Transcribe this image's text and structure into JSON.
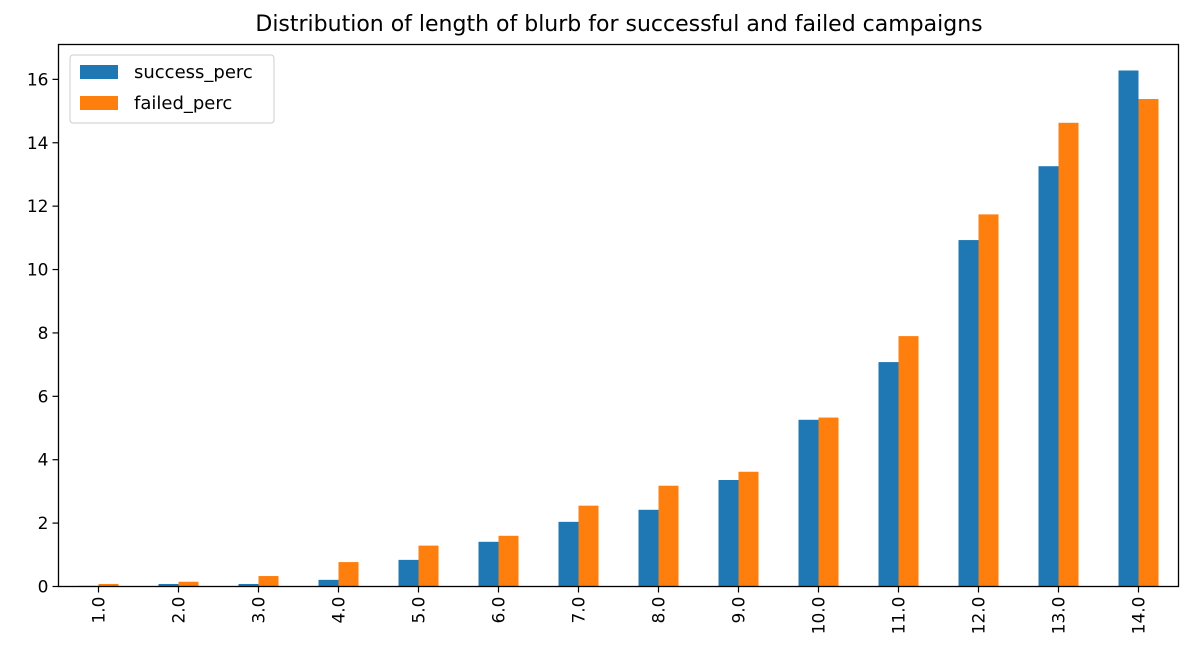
{
  "chart_data": {
    "type": "bar",
    "title": "Distribution of length of blurb for successful and failed campaigns",
    "xlabel": "",
    "ylabel": "",
    "categories": [
      "1.0",
      "2.0",
      "3.0",
      "4.0",
      "5.0",
      "6.0",
      "7.0",
      "8.0",
      "9.0",
      "10.0",
      "11.0",
      "12.0",
      "13.0",
      "14.0"
    ],
    "series": [
      {
        "name": "success_perc",
        "color": "#1f77b4",
        "values": [
          0.02,
          0.08,
          0.08,
          0.21,
          0.84,
          1.41,
          2.04,
          2.42,
          3.36,
          5.26,
          7.08,
          10.93,
          13.26,
          16.28
        ]
      },
      {
        "name": "failed_perc",
        "color": "#ff7f0e",
        "values": [
          0.08,
          0.15,
          0.33,
          0.77,
          1.29,
          1.6,
          2.55,
          3.18,
          3.62,
          5.33,
          7.9,
          11.74,
          14.63,
          15.38
        ]
      }
    ],
    "ylim": [
      0,
      17.1
    ],
    "yticks": [
      "0",
      "2",
      "4",
      "6",
      "8",
      "10",
      "12",
      "14",
      "16"
    ],
    "grid": false,
    "legend_position": "upper-left"
  }
}
